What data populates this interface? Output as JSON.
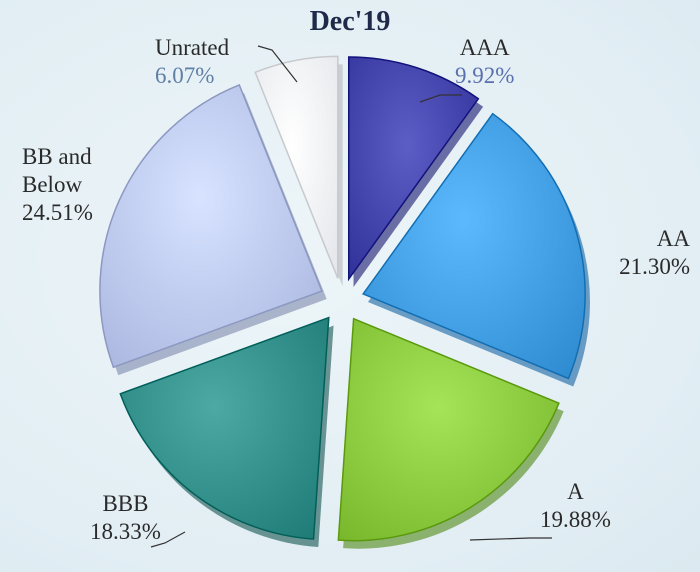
{
  "chart_data": {
    "type": "pie",
    "title": "Dec'19",
    "slices": [
      {
        "label": "AAA",
        "value": 9.92,
        "value_label": "9.92%",
        "color": "#3f3fa8"
      },
      {
        "label": "AA",
        "value": 21.3,
        "value_label": "21.30%",
        "color": "#3f9be0"
      },
      {
        "label": "A",
        "value": 19.88,
        "value_label": "19.88%",
        "color": "#87c63a"
      },
      {
        "label": "BBB",
        "value": 18.33,
        "value_label": "18.33%",
        "color": "#2e8b86"
      },
      {
        "label": "BB and Below",
        "label_lines": [
          "BB and",
          "Below"
        ],
        "value": 24.51,
        "value_label": "24.51%",
        "color": "#b9c5ee"
      },
      {
        "label": "Unrated",
        "value": 6.07,
        "value_label": "6.07%",
        "color": "#f4f6fa"
      }
    ],
    "exploded": true,
    "legend": "none"
  }
}
